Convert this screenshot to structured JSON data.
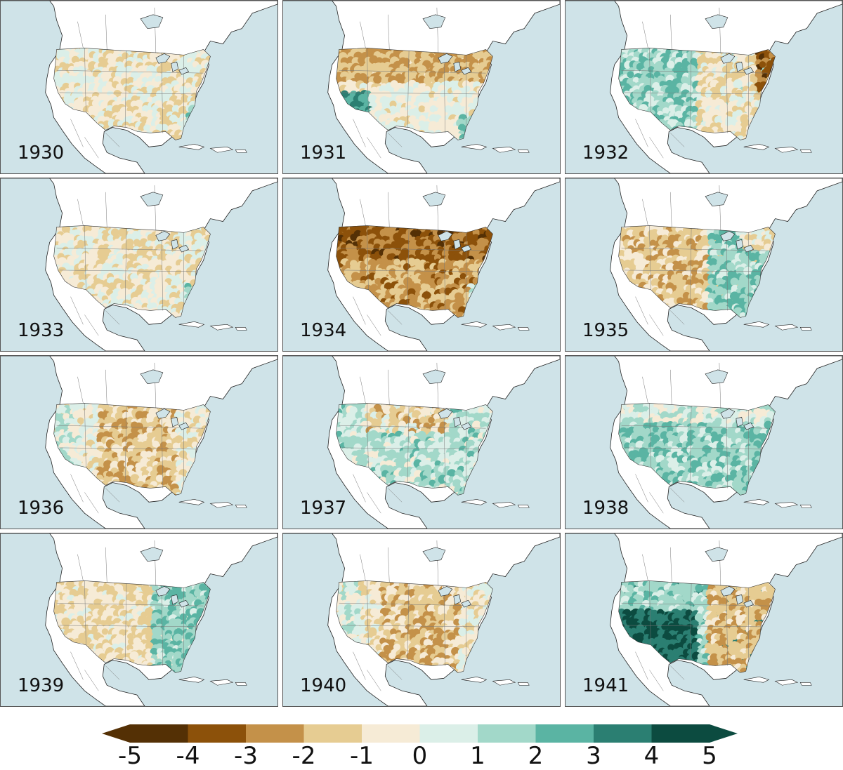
{
  "panels": [
    {
      "year": "1930",
      "pattern": "mixed-dry"
    },
    {
      "year": "1931",
      "pattern": "north-dry"
    },
    {
      "year": "1932",
      "pattern": "west-wet"
    },
    {
      "year": "1933",
      "pattern": "mixed-dry"
    },
    {
      "year": "1934",
      "pattern": "severe-dry"
    },
    {
      "year": "1935",
      "pattern": "east-wet"
    },
    {
      "year": "1936",
      "pattern": "central-dry"
    },
    {
      "year": "1937",
      "pattern": "mixed-wet"
    },
    {
      "year": "1938",
      "pattern": "wet"
    },
    {
      "year": "1939",
      "pattern": "west-dry"
    },
    {
      "year": "1940",
      "pattern": "central-dry"
    },
    {
      "year": "1941",
      "pattern": "southwest-wet"
    }
  ],
  "colorbar": {
    "ticks": [
      "-5",
      "-4",
      "-3",
      "-2",
      "-1",
      "0",
      "1",
      "2",
      "3",
      "4",
      "5"
    ],
    "colors": [
      "#543005",
      "#8c510a",
      "#c49149",
      "#e6cc92",
      "#f6ebd6",
      "#dbefe8",
      "#a2d8c9",
      "#5ab4a3",
      "#2b7f72",
      "#0c4b40"
    ],
    "ocean_color": "#cfe3e8"
  }
}
